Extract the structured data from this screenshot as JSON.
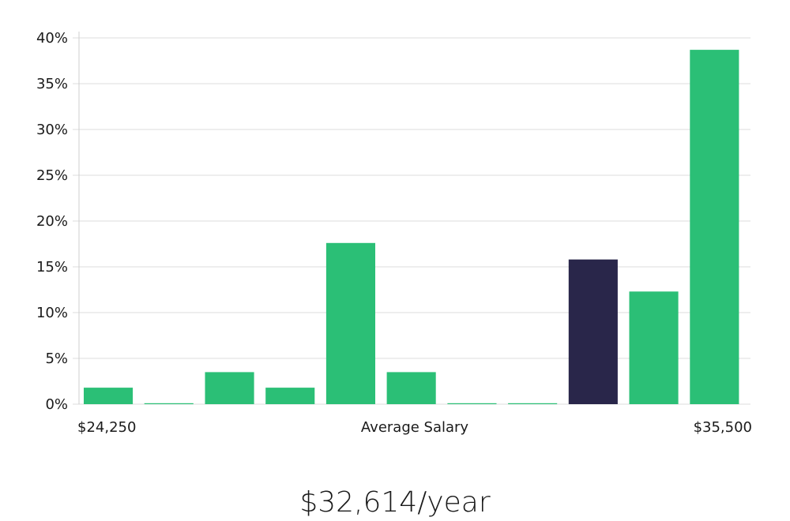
{
  "chart_data": {
    "type": "bar",
    "title": "",
    "xlabel": "Average Salary",
    "ylabel": "",
    "x_range_labels": {
      "min": "$24,250",
      "max": "$35,500"
    },
    "y_ticks": [
      "0%",
      "5%",
      "10%",
      "15%",
      "20%",
      "25%",
      "30%",
      "35%",
      "40%"
    ],
    "ylim": [
      0,
      40
    ],
    "grid": true,
    "values": [
      1.8,
      0.1,
      3.5,
      1.8,
      17.6,
      3.5,
      0.1,
      0.1,
      15.8,
      12.3,
      38.7
    ],
    "highlight_index": 8,
    "colors": {
      "bar": "#2bbf76",
      "highlight": "#29264a"
    }
  },
  "headline": "$32,614/year"
}
